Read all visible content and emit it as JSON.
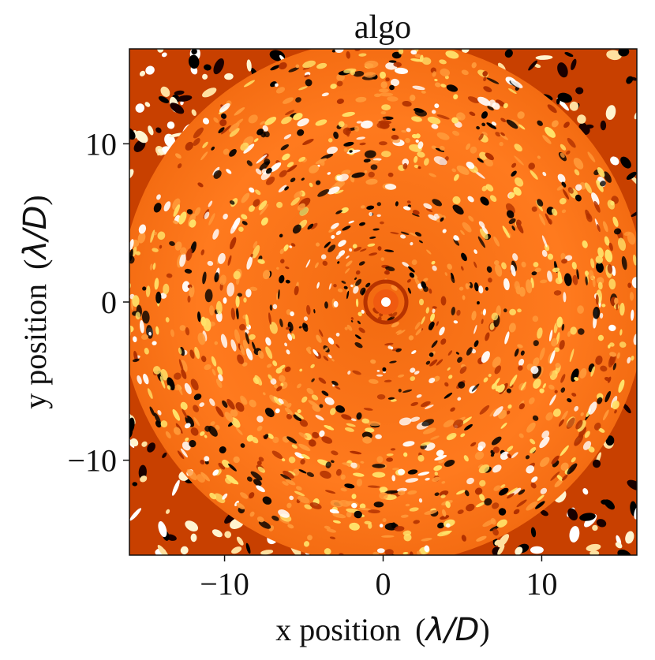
{
  "chart_data": {
    "type": "heatmap",
    "title": "algo",
    "xlabel": "x position",
    "xlabel_unit": "λ/D",
    "ylabel": "y position",
    "ylabel_unit": "λ/D",
    "xlim": [
      -16,
      16
    ],
    "ylim": [
      -16,
      16
    ],
    "x_ticks": [
      -10,
      0,
      10
    ],
    "y_ticks": [
      -10,
      0,
      10
    ],
    "x_tick_labels": [
      "−10",
      "0",
      "10"
    ],
    "y_tick_labels": [
      "−10",
      "0",
      "10"
    ],
    "colormap": "hot",
    "grid": false,
    "legend": "none"
  }
}
